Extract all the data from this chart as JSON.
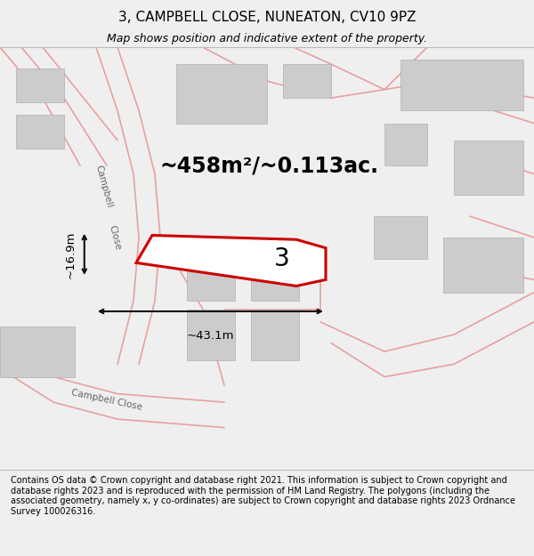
{
  "title": "3, CAMPBELL CLOSE, NUNEATON, CV10 9PZ",
  "subtitle": "Map shows position and indicative extent of the property.",
  "footer": "Contains OS data © Crown copyright and database right 2021. This information is subject to Crown copyright and database rights 2023 and is reproduced with the permission of HM Land Registry. The polygons (including the associated geometry, namely x, y co-ordinates) are subject to Crown copyright and database rights 2023 Ordnance Survey 100026316.",
  "area_label": "~458m²/~0.113ac.",
  "plot_number": "3",
  "width_label": "~43.1m",
  "height_label": "~16.9m",
  "bg_color": "#efefef",
  "map_bg": "#f5f5f5",
  "road_color": "#e8a0a0",
  "building_color": "#cccccc",
  "building_edge": "#b0b0b0",
  "plot_outline_color": "#cc0000",
  "plot_fill": "#ffffff",
  "dim_line_color": "#111111",
  "street_label_color": "#666666",
  "title_fontsize": 11,
  "subtitle_fontsize": 9,
  "footer_fontsize": 7.0,
  "area_fontsize": 17,
  "plot_num_fontsize": 20,
  "dim_fontsize": 9.5,
  "street_label_fontsize": 7.5
}
